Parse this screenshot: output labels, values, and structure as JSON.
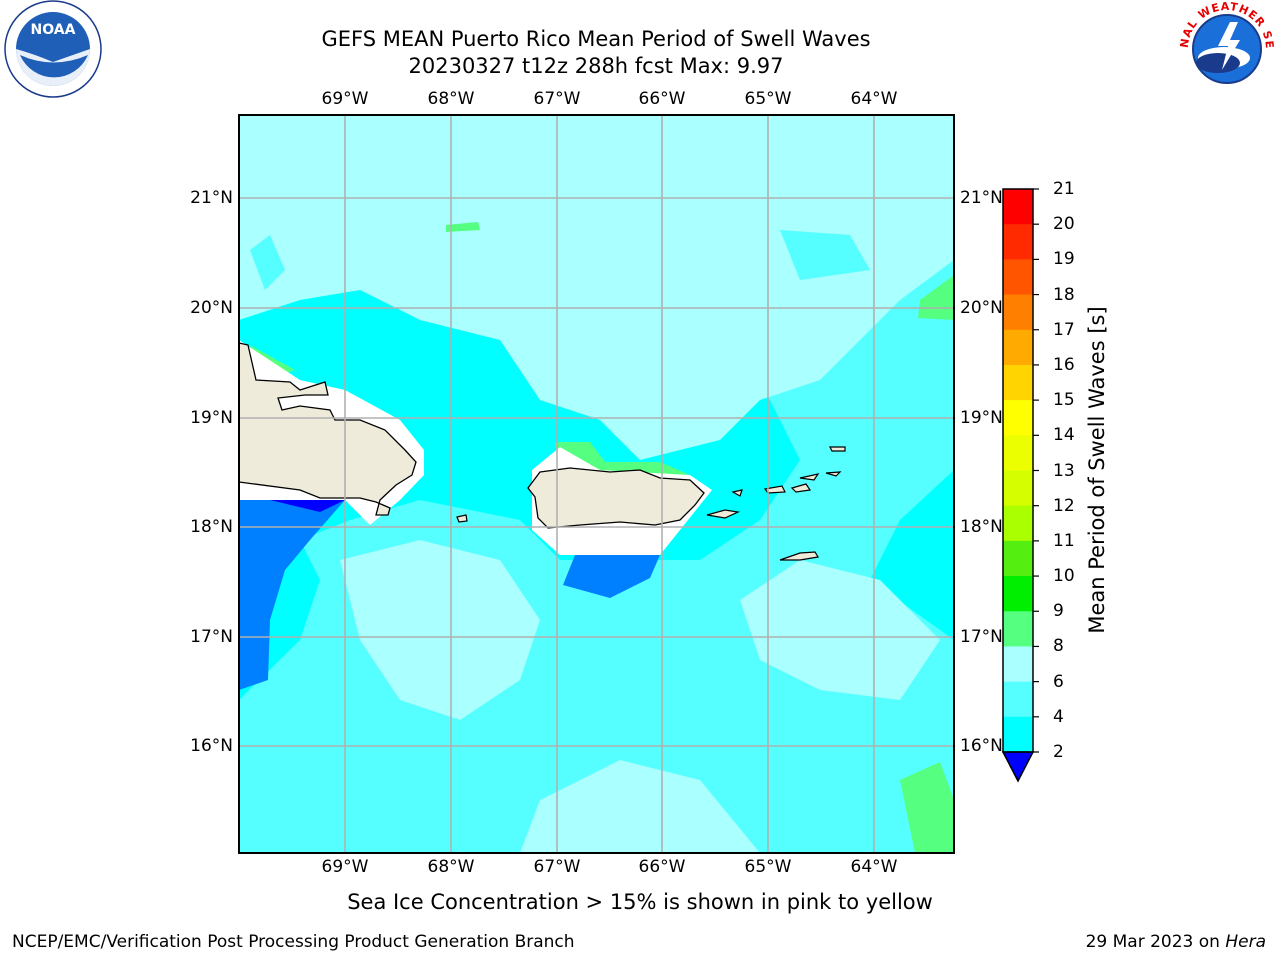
{
  "title": {
    "line1": "GEFS MEAN Puerto Rico Mean Period of Swell Waves",
    "line2": "20230327 t12z 288h fcst   Max: 9.97"
  },
  "map": {
    "lon_labels": [
      "69°W",
      "68°W",
      "67°W",
      "66°W",
      "65°W",
      "64°W"
    ],
    "lat_labels": [
      "21°N",
      "20°N",
      "19°N",
      "18°N",
      "17°N",
      "16°N"
    ],
    "background_color": "#00ffff",
    "land_color": "#efebdb",
    "features": [
      "Hispaniola coast",
      "Puerto Rico",
      "Virgin Islands",
      "St. Croix",
      "Mona Island"
    ]
  },
  "colorbar": {
    "label": "Mean Period of Swell Waves [s]",
    "ticks": [
      "21",
      "20",
      "19",
      "18",
      "17",
      "16",
      "15",
      "14",
      "13",
      "12",
      "11",
      "10",
      "9",
      "8",
      "6",
      "4",
      "2"
    ],
    "colors": [
      "#ff0000",
      "#ff2a00",
      "#ff5500",
      "#ff8000",
      "#ffaa00",
      "#ffd400",
      "#ffff00",
      "#ecff00",
      "#d5ff00",
      "#aaff00",
      "#55ee11",
      "#00ee00",
      "#55ff80",
      "#aaffff",
      "#55ffff",
      "#00ffff",
      "#007fff",
      "#0000ff"
    ]
  },
  "subtitle": "Sea Ice Concentration > 15% is shown in pink to yellow",
  "footer": {
    "left": "NCEP/EMC/Verification Post Processing Product Generation Branch",
    "right_date": "29 Mar 2023 on ",
    "right_host": "Hera"
  },
  "logos": {
    "noaa_text": "NOAA",
    "nws_text": "NATIONAL WEATHER SERVICE"
  }
}
